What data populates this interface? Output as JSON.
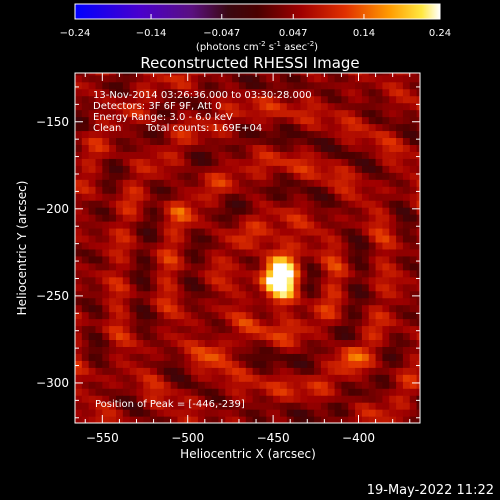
{
  "chart_data": {
    "type": "heatmap",
    "title": "Reconstructed RHESSI Image",
    "xlabel": "Heliocentric X (arcsec)",
    "ylabel": "Heliocentric Y (arcsec)",
    "xlim": [
      -566,
      -364
    ],
    "ylim": [
      -323,
      -122
    ],
    "xticks": [
      -550,
      -500,
      -450,
      -400
    ],
    "yticks": [
      -150,
      -200,
      -250,
      -300
    ],
    "colorbar": {
      "range": [
        -0.24,
        0.24
      ],
      "ticks": [
        "-0.24",
        "-0.14",
        "-0.047",
        "0.047",
        "0.14",
        "0.24"
      ],
      "unit_text": "(photons cm",
      "unit_sup1": "-2",
      "unit_mid": " s",
      "unit_sup2": "-1",
      "unit_mid2": " asec",
      "unit_sup3": "-2",
      "unit_end": ")"
    },
    "annotations": {
      "line1": "13-Nov-2014 03:26:36.000 to 03:30:28.000",
      "line2": "Detectors: 3F 6F 9F, Att 0",
      "line3": "Energy Range: 3.0 - 6.0 keV",
      "line4_a": "Clean",
      "line4_b": "Total counts: 1.69E+04",
      "peak": "Position of Peak = [-446,-239]"
    },
    "peak": {
      "x": -446,
      "y": -239,
      "value": 0.24
    },
    "secondary_sources": [
      {
        "x": -480,
        "y": -280,
        "value": 0.15
      },
      {
        "x": -405,
        "y": -285,
        "value": 0.12
      },
      {
        "x": -505,
        "y": -200,
        "value": 0.1
      }
    ],
    "colors": {
      "background": "#000000",
      "text": "#ffffff"
    }
  },
  "footer": {
    "date": "19-May-2022 11:22"
  }
}
